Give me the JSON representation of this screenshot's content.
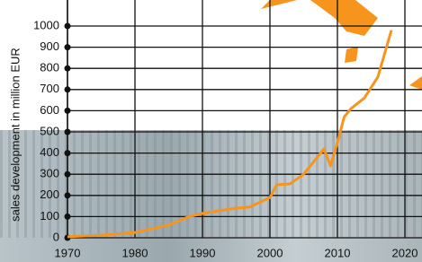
{
  "chart_data": {
    "type": "line",
    "y_label": "sales development in million EUR",
    "x": [
      1970,
      1975,
      1980,
      1985,
      1988,
      1990,
      1995,
      1997,
      2000,
      2001,
      2003,
      2005,
      2008,
      2009,
      2010,
      2011,
      2012,
      2014,
      2016,
      2018
    ],
    "series": [
      {
        "color": "#f7941d",
        "values": [
          5,
          12,
          25,
          60,
          100,
          115,
          140,
          145,
          190,
          250,
          255,
          300,
          420,
          340,
          450,
          570,
          610,
          660,
          760,
          980
        ]
      }
    ],
    "xlim": [
      1970,
      2023
    ],
    "xticks": [
      1970,
      1980,
      1990,
      2000,
      2010,
      2020
    ],
    "ylim": [
      0,
      1000
    ],
    "yticks": [
      0,
      100,
      200,
      300,
      400,
      500,
      600,
      700,
      800,
      900,
      1000
    ],
    "grid": true
  }
}
